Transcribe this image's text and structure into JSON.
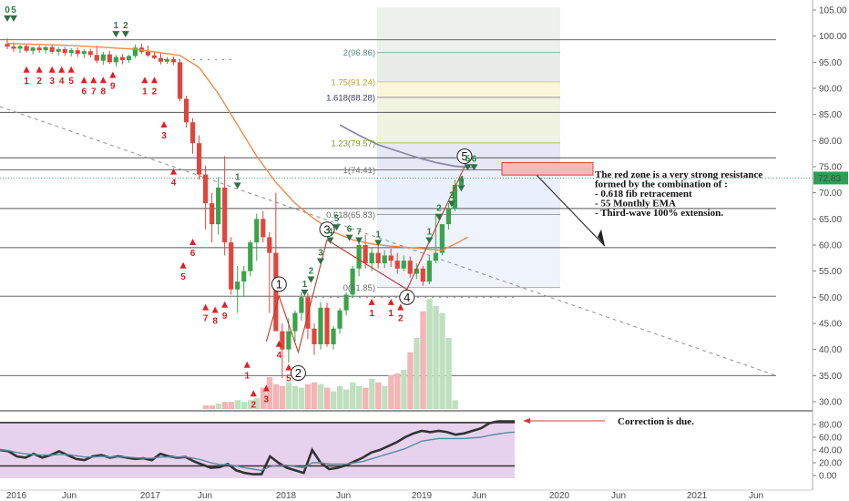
{
  "chart_data": [
    {
      "type": "candlestick",
      "x_labels": [
        "2016",
        "Jun",
        "2017",
        "Jun",
        "2018",
        "Jun",
        "2019",
        "Jun",
        "2020",
        "Jun",
        "2021",
        "Jun"
      ],
      "yticks": [
        30,
        35,
        40,
        45,
        50,
        55,
        60,
        65,
        70,
        75,
        80,
        85,
        90,
        95,
        100,
        105
      ],
      "ylim": [
        28,
        107
      ],
      "last_price": "72.83",
      "candles": [
        {
          "o": 98.5,
          "h": 99.6,
          "l": 97.5,
          "c": 98.0
        },
        {
          "o": 98.0,
          "h": 98.8,
          "l": 97.0,
          "c": 97.6
        },
        {
          "o": 97.6,
          "h": 98.3,
          "l": 96.8,
          "c": 98.1
        },
        {
          "o": 98.1,
          "h": 98.5,
          "l": 96.9,
          "c": 97.2
        },
        {
          "o": 97.2,
          "h": 98.0,
          "l": 96.5,
          "c": 97.8
        },
        {
          "o": 97.8,
          "h": 98.2,
          "l": 96.8,
          "c": 97.3
        },
        {
          "o": 97.3,
          "h": 98.1,
          "l": 96.7,
          "c": 97.9
        },
        {
          "o": 97.9,
          "h": 98.2,
          "l": 96.6,
          "c": 97.0
        },
        {
          "o": 97.0,
          "h": 97.9,
          "l": 96.3,
          "c": 97.5
        },
        {
          "o": 97.5,
          "h": 97.9,
          "l": 96.2,
          "c": 96.8
        },
        {
          "o": 96.8,
          "h": 97.7,
          "l": 96.1,
          "c": 97.3
        },
        {
          "o": 97.3,
          "h": 97.8,
          "l": 96.0,
          "c": 96.6
        },
        {
          "o": 96.6,
          "h": 97.5,
          "l": 95.8,
          "c": 97.1
        },
        {
          "o": 97.1,
          "h": 97.6,
          "l": 95.9,
          "c": 96.4
        },
        {
          "o": 96.4,
          "h": 98.2,
          "l": 94.8,
          "c": 95.3
        },
        {
          "o": 95.3,
          "h": 97.0,
          "l": 94.5,
          "c": 96.5
        },
        {
          "o": 96.5,
          "h": 97.2,
          "l": 94.7,
          "c": 95.0
        },
        {
          "o": 95.0,
          "h": 96.4,
          "l": 94.2,
          "c": 96.0
        },
        {
          "o": 96.0,
          "h": 96.6,
          "l": 94.6,
          "c": 95.4
        },
        {
          "o": 95.4,
          "h": 96.5,
          "l": 94.9,
          "c": 96.2
        },
        {
          "o": 96.2,
          "h": 98.4,
          "l": 95.8,
          "c": 97.8
        },
        {
          "o": 97.8,
          "h": 98.6,
          "l": 96.6,
          "c": 97.0
        },
        {
          "o": 97.0,
          "h": 98.2,
          "l": 96.0,
          "c": 96.3
        },
        {
          "o": 96.3,
          "h": 97.1,
          "l": 95.6,
          "c": 95.8
        },
        {
          "o": 95.8,
          "h": 96.7,
          "l": 94.6,
          "c": 95.1
        },
        {
          "o": 95.1,
          "h": 96.0,
          "l": 94.7,
          "c": 95.6
        },
        {
          "o": 95.6,
          "h": 96.1,
          "l": 94.5,
          "c": 95.0
        },
        {
          "o": 95.0,
          "h": 95.4,
          "l": 87.5,
          "c": 88.0
        },
        {
          "o": 88.0,
          "h": 88.6,
          "l": 82.5,
          "c": 83.5
        },
        {
          "o": 83.5,
          "h": 84.3,
          "l": 77.5,
          "c": 79.5
        },
        {
          "o": 79.5,
          "h": 81.0,
          "l": 72.5,
          "c": 73.5
        },
        {
          "o": 73.5,
          "h": 75.2,
          "l": 63.0,
          "c": 68.0
        },
        {
          "o": 68.0,
          "h": 70.0,
          "l": 60.5,
          "c": 64.0
        },
        {
          "o": 64.0,
          "h": 73.0,
          "l": 62.0,
          "c": 71.0
        },
        {
          "o": 71.0,
          "h": 77.0,
          "l": 58.0,
          "c": 60.5
        },
        {
          "o": 60.5,
          "h": 61.5,
          "l": 50.5,
          "c": 51.5
        },
        {
          "o": 51.5,
          "h": 56.0,
          "l": 47.0,
          "c": 53.0
        },
        {
          "o": 53.0,
          "h": 56.0,
          "l": 50.0,
          "c": 55.0
        },
        {
          "o": 55.0,
          "h": 61.0,
          "l": 54.0,
          "c": 60.5
        },
        {
          "o": 60.5,
          "h": 66.0,
          "l": 57.0,
          "c": 65.0
        },
        {
          "o": 65.0,
          "h": 66.5,
          "l": 60.5,
          "c": 61.5
        },
        {
          "o": 61.5,
          "h": 62.5,
          "l": 47.0,
          "c": 58.5
        },
        {
          "o": 58.5,
          "h": 70.0,
          "l": 44.0,
          "c": 43.5
        },
        {
          "o": 43.5,
          "h": 45.0,
          "l": 34.5,
          "c": 40.0
        },
        {
          "o": 40.0,
          "h": 46.0,
          "l": 37.5,
          "c": 43.5
        },
        {
          "o": 43.5,
          "h": 47.5,
          "l": 41.5,
          "c": 47.0
        },
        {
          "o": 47.0,
          "h": 51.0,
          "l": 45.5,
          "c": 50.0
        },
        {
          "o": 50.0,
          "h": 50.8,
          "l": 42.0,
          "c": 44.0
        },
        {
          "o": 44.0,
          "h": 45.0,
          "l": 39.0,
          "c": 41.0
        },
        {
          "o": 41.0,
          "h": 49.0,
          "l": 40.0,
          "c": 48.0
        },
        {
          "o": 48.0,
          "h": 49.0,
          "l": 40.5,
          "c": 41.0
        },
        {
          "o": 41.0,
          "h": 44.5,
          "l": 40.0,
          "c": 44.0
        },
        {
          "o": 44.0,
          "h": 48.0,
          "l": 43.0,
          "c": 47.5
        },
        {
          "o": 47.5,
          "h": 51.0,
          "l": 46.5,
          "c": 50.5
        },
        {
          "o": 50.5,
          "h": 56.0,
          "l": 50.0,
          "c": 55.5
        },
        {
          "o": 55.5,
          "h": 61.0,
          "l": 54.0,
          "c": 60.0
        },
        {
          "o": 60.0,
          "h": 62.0,
          "l": 55.5,
          "c": 56.5
        },
        {
          "o": 56.5,
          "h": 59.5,
          "l": 55.0,
          "c": 58.5
        },
        {
          "o": 58.5,
          "h": 59.8,
          "l": 55.5,
          "c": 56.5
        },
        {
          "o": 56.5,
          "h": 59.0,
          "l": 55.6,
          "c": 58.0
        },
        {
          "o": 58.0,
          "h": 59.3,
          "l": 55.8,
          "c": 57.0
        },
        {
          "o": 57.0,
          "h": 58.5,
          "l": 54.5,
          "c": 55.5
        },
        {
          "o": 55.5,
          "h": 58.0,
          "l": 55.0,
          "c": 57.0
        },
        {
          "o": 57.0,
          "h": 57.8,
          "l": 53.8,
          "c": 54.5
        },
        {
          "o": 54.5,
          "h": 56.5,
          "l": 53.5,
          "c": 55.5
        },
        {
          "o": 55.5,
          "h": 56.0,
          "l": 52.2,
          "c": 53.0
        },
        {
          "o": 53.0,
          "h": 58.0,
          "l": 52.5,
          "c": 57.0
        },
        {
          "o": 57.0,
          "h": 66.0,
          "l": 56.5,
          "c": 58.5
        },
        {
          "o": 58.5,
          "h": 64.0,
          "l": 58.0,
          "c": 64.0
        },
        {
          "o": 64.0,
          "h": 68.0,
          "l": 63.0,
          "c": 67.0
        },
        {
          "o": 67.0,
          "h": 72.5,
          "l": 66.5,
          "c": 71.5
        },
        {
          "o": 71.5,
          "h": 73.0,
          "l": 71.0,
          "c": 72.8
        }
      ],
      "volume": [
        0,
        0,
        0,
        0,
        0,
        0,
        0,
        0,
        0,
        0,
        0,
        0,
        0,
        0,
        0,
        0,
        0,
        0,
        0,
        0,
        0,
        0,
        0,
        0,
        0,
        0,
        0,
        0,
        0,
        0,
        0,
        2,
        2,
        3,
        4,
        4,
        5,
        4,
        5,
        6,
        12,
        18,
        14,
        13,
        15,
        13,
        12,
        14,
        15,
        14,
        12,
        10,
        13,
        11,
        15,
        13,
        12,
        17,
        15,
        13,
        19,
        20,
        22,
        32,
        40,
        55,
        62,
        58,
        54,
        40,
        5
      ],
      "ema": {
        "name": "55 Monthly EMA",
        "points": [
          [
            0,
            98.6
          ],
          [
            10,
            98.2
          ],
          [
            20,
            97.5
          ],
          [
            27,
            96.3
          ],
          [
            30,
            94.0
          ],
          [
            33,
            89.0
          ],
          [
            36,
            83.0
          ],
          [
            39,
            77.0
          ],
          [
            42,
            72.0
          ],
          [
            45,
            68.0
          ],
          [
            48,
            65.0
          ],
          [
            51,
            62.5
          ],
          [
            54,
            61.0
          ],
          [
            57,
            60.2
          ],
          [
            60,
            59.8
          ],
          [
            63,
            59.5
          ],
          [
            66,
            59.2
          ],
          [
            68,
            59.0
          ],
          [
            70,
            60.2
          ],
          [
            72,
            61.5
          ]
        ]
      },
      "sma_grey": {
        "points": [
          [
            52,
            83
          ],
          [
            55,
            81
          ],
          [
            58,
            79.2
          ],
          [
            61,
            78
          ],
          [
            64,
            76.8
          ],
          [
            67,
            75.8
          ],
          [
            70,
            75.1
          ],
          [
            73,
            74.8
          ]
        ]
      },
      "horizontal_levels": [
        99.3,
        85.4,
        76.7,
        74.4,
        67.0,
        59.5,
        50.2,
        35.0
      ],
      "fib_levels": [
        {
          "label": "2(96.86)",
          "value": 96.86,
          "color": "#5a8a8a"
        },
        {
          "label": "1.75(91.24)",
          "value": 91.24,
          "color": "#b4a42a"
        },
        {
          "label": "1.618(88.28)",
          "value": 88.28,
          "color": "#3a3a6a"
        },
        {
          "label": "1.23(79.57)",
          "value": 79.57,
          "color": "#7a9a3a"
        },
        {
          "label": "1(74.41)",
          "value": 74.41,
          "color": "#777777"
        },
        {
          "label": "0.618(65.83)",
          "value": 65.83,
          "color": "#6a6a6a"
        },
        {
          "label": "0(51.85)",
          "value": 51.85,
          "color": "#6a6a6a"
        }
      ],
      "wave_labels": [
        {
          "label": "1",
          "x": 42.5,
          "y": 52.5
        },
        {
          "label": "2",
          "x": 45.5,
          "y": 35.5
        },
        {
          "label": "3",
          "x": 50,
          "y": 63.0
        },
        {
          "label": "4",
          "x": 62.5,
          "y": 50.0
        },
        {
          "label": "5",
          "x": 71.5,
          "y": 77.0
        }
      ],
      "annotations": [
        "The red zone is a very strong resistance",
        "formed by the combination of :",
        "- 0.618 fib retracement",
        "- 55 Monthly EMA",
        "- Third-wave 100% extension."
      ],
      "seq_counts_green": [
        {
          "t": "0",
          "i": 0,
          "v": 104.5
        },
        {
          "t": "5",
          "i": 1,
          "v": 104.5
        },
        {
          "t": "1",
          "i": 17,
          "v": 101.5
        },
        {
          "t": "2",
          "i": 18.5,
          "v": 101.5
        },
        {
          "t": "1",
          "i": 36,
          "v": 72.5
        },
        {
          "t": "1",
          "i": 46.5,
          "v": 52.0
        },
        {
          "t": "2",
          "i": 47.5,
          "v": 54.5
        },
        {
          "t": "3",
          "i": 49,
          "v": 58.0
        },
        {
          "t": "4",
          "i": 50.5,
          "v": 62.0
        },
        {
          "t": "5",
          "i": 51.5,
          "v": 64.5
        },
        {
          "t": "6",
          "i": 53.5,
          "v": 62.5
        },
        {
          "t": "7",
          "i": 55,
          "v": 62.0
        },
        {
          "t": "1",
          "i": 58,
          "v": 61.5
        },
        {
          "t": "1",
          "i": 66,
          "v": 62.0
        },
        {
          "t": "2",
          "i": 67.5,
          "v": 66.5
        },
        {
          "t": "3",
          "i": 69.5,
          "v": 69.0
        },
        {
          "t": "4",
          "i": 71,
          "v": 72.0
        },
        {
          "t": "5",
          "i": 72,
          "v": 76.0
        },
        {
          "t": "6",
          "i": 73,
          "v": 76.0
        }
      ],
      "seq_counts_red": [
        {
          "t": "1",
          "i": 3,
          "v": 93.0
        },
        {
          "t": "2",
          "i": 5,
          "v": 93.0
        },
        {
          "t": "3",
          "i": 7,
          "v": 93.0
        },
        {
          "t": "4",
          "i": 8.5,
          "v": 93.0
        },
        {
          "t": "5",
          "i": 10,
          "v": 93.0
        },
        {
          "t": "6",
          "i": 12,
          "v": 91.0
        },
        {
          "t": "7",
          "i": 13.5,
          "v": 91.0
        },
        {
          "t": "8",
          "i": 15,
          "v": 91.0
        },
        {
          "t": "9",
          "i": 16.5,
          "v": 92.0
        },
        {
          "t": "1",
          "i": 21.5,
          "v": 91.0
        },
        {
          "t": "2",
          "i": 23,
          "v": 91.0
        },
        {
          "t": "3",
          "i": 24.5,
          "v": 82.5
        },
        {
          "t": "4",
          "i": 26,
          "v": 73.5
        },
        {
          "t": "5",
          "i": 27.5,
          "v": 55.5
        },
        {
          "t": "6",
          "i": 29,
          "v": 60.0
        },
        {
          "t": "7",
          "i": 31,
          "v": 47.5
        },
        {
          "t": "8",
          "i": 32.5,
          "v": 47.0
        },
        {
          "t": "9",
          "i": 34,
          "v": 48.0
        },
        {
          "t": "1",
          "i": 37.5,
          "v": 36.5
        },
        {
          "t": "2",
          "i": 38.5,
          "v": 31.0
        },
        {
          "t": "3",
          "i": 40.5,
          "v": 32.0
        },
        {
          "t": "4",
          "i": 42.5,
          "v": 40.5
        },
        {
          "t": "5",
          "i": 44,
          "v": 36.0
        },
        {
          "t": "1",
          "i": 57,
          "v": 48.5
        },
        {
          "t": "1",
          "i": 60,
          "v": 48.5
        },
        {
          "t": "2",
          "i": 61.5,
          "v": 47.5
        }
      ]
    },
    {
      "type": "line",
      "name": "rsi-panel",
      "yticks": [
        0,
        20,
        40,
        60,
        80
      ],
      "ylim": [
        -6,
        92
      ],
      "upper_level": 83,
      "lower_level": 15,
      "annotation": "Correction is due.",
      "series": [
        {
          "values": [
            40,
            38,
            30,
            28,
            34,
            28,
            32,
            38,
            32,
            26,
            24,
            30,
            32,
            28,
            30,
            28,
            26,
            27,
            24,
            34,
            30,
            28,
            29,
            22,
            17,
            12,
            13,
            18,
            8,
            4,
            2,
            2,
            30,
            20,
            12,
            8,
            4,
            40,
            20,
            10,
            12,
            16,
            22,
            28,
            36,
            40,
            46,
            52,
            60,
            66,
            70,
            68,
            70,
            68,
            64,
            66,
            70,
            74,
            82,
            85,
            85,
            85
          ],
          "color": "#333333",
          "width": 2.6
        },
        {
          "values": [
            40,
            39,
            36,
            34,
            33,
            32,
            32,
            33,
            33,
            31,
            29,
            29,
            30,
            29,
            29,
            29,
            28,
            27,
            27,
            29,
            29,
            29,
            29,
            27,
            24,
            20,
            17,
            17,
            15,
            12,
            10,
            8,
            14,
            16,
            16,
            14,
            12,
            20,
            20,
            18,
            18,
            18,
            20,
            22,
            26,
            30,
            34,
            38,
            42,
            48,
            54,
            56,
            58,
            58,
            58,
            58,
            59,
            60,
            63,
            65,
            67,
            68
          ],
          "color": "#5a8aa0",
          "width": 1.4
        }
      ]
    }
  ]
}
